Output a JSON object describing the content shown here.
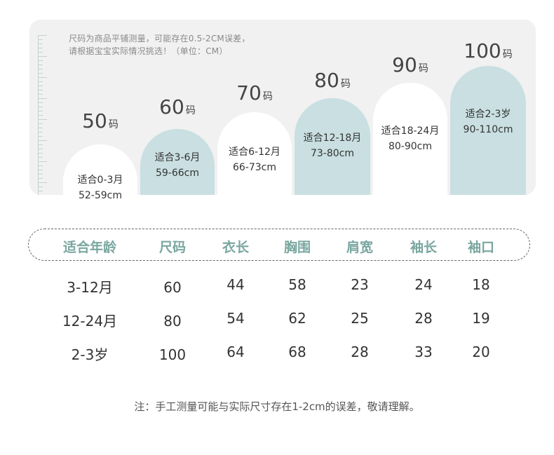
{
  "note": {
    "line1": "尺码为商品平铺测量，可能存在0.5-2CM误差，",
    "line2": "请根据宝宝实际情况挑选！（单位：CM）"
  },
  "sizes": [
    {
      "num": "50",
      "unit": "码",
      "age": "适合0-3月",
      "range": "52-59cm",
      "style": "white"
    },
    {
      "num": "60",
      "unit": "码",
      "age": "适合3-6月",
      "range": "59-66cm",
      "style": "teal"
    },
    {
      "num": "70",
      "unit": "码",
      "age": "适合6-12月",
      "range": "66-73cm",
      "style": "white"
    },
    {
      "num": "80",
      "unit": "码",
      "age": "适合12-18月",
      "range": "73-80cm",
      "style": "teal"
    },
    {
      "num": "90",
      "unit": "码",
      "age": "适合18-24月",
      "range": "80-90cm",
      "style": "white"
    },
    {
      "num": "100",
      "unit": "码",
      "age": "适合2-3岁",
      "range": "90-110cm",
      "style": "teal"
    }
  ],
  "table": {
    "headers": [
      "适合年龄",
      "尺码",
      "衣长",
      "胸围",
      "肩宽",
      "袖长",
      "袖口"
    ],
    "rows": [
      [
        "3-12月",
        "60",
        "44",
        "58",
        "23",
        "24",
        "18"
      ],
      [
        "12-24月",
        "80",
        "54",
        "62",
        "25",
        "28",
        "19"
      ],
      [
        "2-3岁",
        "100",
        "64",
        "68",
        "28",
        "33",
        "20"
      ]
    ]
  },
  "footnote": "注：手工测量可能与实际尺寸存在1-2cm的误差，敬请理解。",
  "colors": {
    "teal_arch": "#c9dfe1",
    "header_text": "#7aa7a0",
    "panel_bg": "#f1f1f1"
  }
}
